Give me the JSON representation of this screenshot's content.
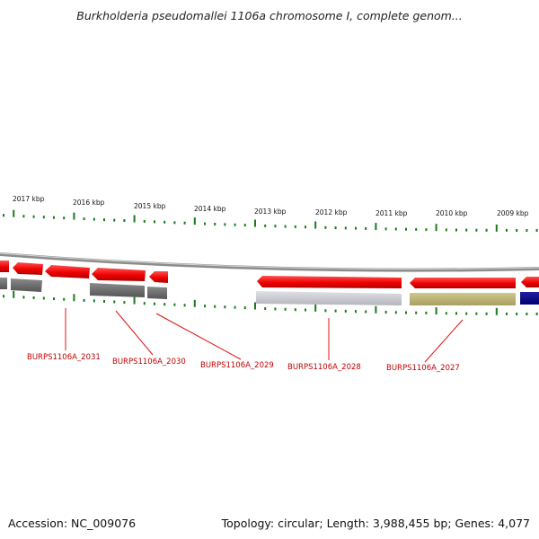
{
  "header": {
    "title": "Burkholderia pseudomallei 1106a chromosome I, complete genom..."
  },
  "scale": {
    "ticks": [
      "2017 kbp",
      "2016 kbp",
      "2015 kbp",
      "2014 kbp",
      "2013 kbp",
      "2012 kbp",
      "2011 kbp",
      "2010 kbp",
      "2009 kbp"
    ]
  },
  "genes": [
    {
      "label": "BURPS1106A_2031"
    },
    {
      "label": "BURPS1106A_2030"
    },
    {
      "label": "BURPS1106A_2029"
    },
    {
      "label": "BURPS1106A_2028"
    },
    {
      "label": "BURPS1106A_2027"
    }
  ],
  "colors": {
    "gene": "#ff0000",
    "backbone": "#808080",
    "tick": "#1a7a1a",
    "label": "#c00000",
    "feature_dark_gray": "#666666",
    "feature_light_gray": "#c6c6c6",
    "feature_olive": "#b8b070",
    "feature_navy": "#000080"
  },
  "footer": {
    "accession": "Accession: NC_009076",
    "summary": "Topology: circular; Length: 3,988,455 bp; Genes: 4,077"
  }
}
